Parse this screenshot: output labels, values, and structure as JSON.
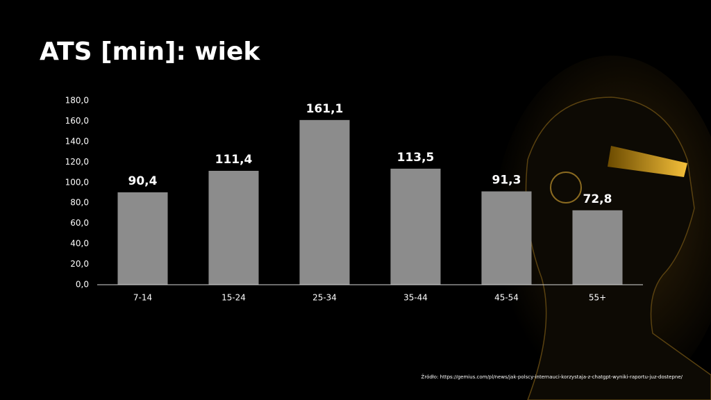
{
  "chart_data": {
    "type": "bar",
    "title": "ATS [min]: wiek",
    "categories": [
      "7-14",
      "15-24",
      "25-34",
      "35-44",
      "45-54",
      "55+"
    ],
    "values": [
      90.4,
      111.4,
      161.1,
      113.5,
      91.3,
      72.8
    ],
    "value_labels": [
      "90,4",
      "111,4",
      "161,1",
      "113,5",
      "91,3",
      "72,8"
    ],
    "color": "#8c8c8c",
    "ylim": [
      0,
      180
    ],
    "yticks": [
      {
        "value": 0,
        "label": "0,0"
      },
      {
        "value": 20,
        "label": "20,0"
      },
      {
        "value": 40,
        "label": "40,0"
      },
      {
        "value": 60,
        "label": "60,0"
      },
      {
        "value": 80,
        "label": "80,0"
      },
      {
        "value": 100,
        "label": "100,0"
      },
      {
        "value": 120,
        "label": "120,0"
      },
      {
        "value": 140,
        "label": "140,0"
      },
      {
        "value": 160,
        "label": "160,0"
      },
      {
        "value": 180,
        "label": "180,0"
      }
    ],
    "grid": false,
    "source": "Źródło: https://gemius.com/pl/news/jak-polscy-internauci-korzystaja-z-chatgpt-wyniki-raportu-juz-dostepne/"
  }
}
